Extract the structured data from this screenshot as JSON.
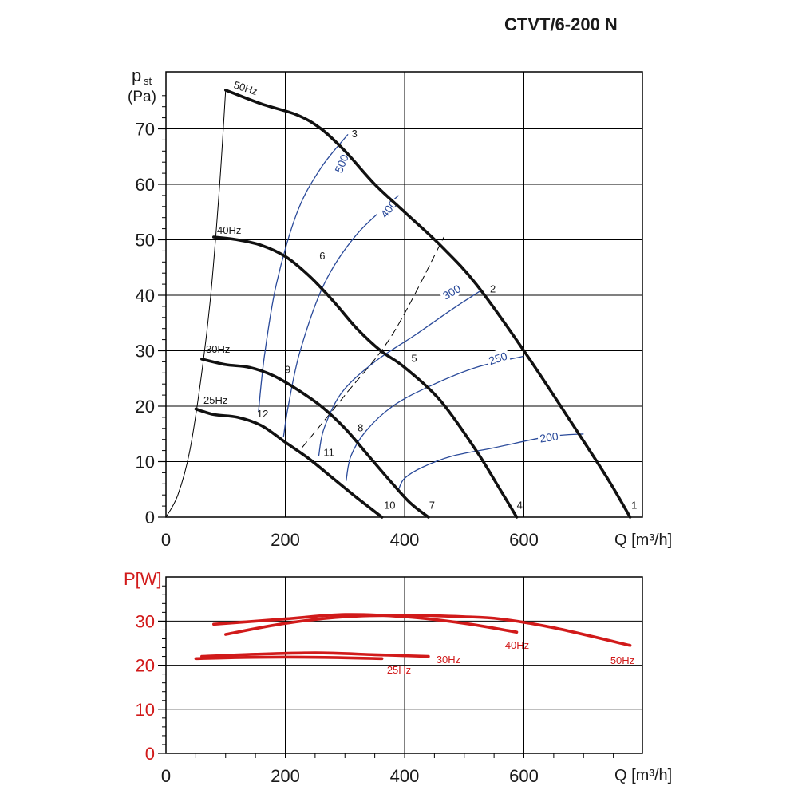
{
  "title": "CTVT/6-200 N",
  "chart_data": [
    {
      "type": "line",
      "name": "static-pressure",
      "ylabel_main": "p",
      "ylabel_sub": "st",
      "ylabel_unit": "(Pa)",
      "xlabel": "Q [m³/h]",
      "xlim": [
        0,
        800
      ],
      "ylim": [
        0,
        80
      ],
      "xticks": [
        0,
        200,
        400,
        600
      ],
      "yticks": [
        0,
        10,
        20,
        30,
        40,
        50,
        60,
        70
      ],
      "grid": true,
      "series": [
        {
          "name": "50Hz",
          "x": [
            100,
            160,
            220,
            260,
            300,
            350,
            400,
            460,
            520,
            600,
            680,
            740,
            778
          ],
          "y": [
            77,
            74.5,
            72.5,
            70,
            66,
            60,
            55,
            49,
            42,
            30,
            17,
            7,
            0
          ]
        },
        {
          "name": "40Hz",
          "x": [
            80,
            120,
            160,
            200,
            240,
            280,
            320,
            360,
            400,
            460,
            520,
            560,
            588
          ],
          "y": [
            50.5,
            50,
            49,
            47,
            43.5,
            39,
            34,
            30,
            27,
            21,
            12,
            5,
            0
          ]
        },
        {
          "name": "30Hz",
          "x": [
            60,
            100,
            140,
            180,
            220,
            260,
            300,
            340,
            380,
            410,
            440
          ],
          "y": [
            28.5,
            27.5,
            27,
            25.5,
            23,
            20,
            16,
            11,
            6,
            2.5,
            0
          ]
        },
        {
          "name": "25Hz",
          "x": [
            50,
            80,
            120,
            160,
            200,
            240,
            280,
            320,
            362
          ],
          "y": [
            19.5,
            18.5,
            18,
            16.5,
            13.5,
            10.5,
            7,
            3.5,
            0
          ]
        }
      ],
      "system_curves": [
        {
          "label": "500",
          "x": [
            155,
            165,
            185,
            220,
            260,
            305
          ],
          "y": [
            19,
            29,
            42,
            55,
            63,
            69
          ]
        },
        {
          "label": "400",
          "x": [
            197,
            205,
            225,
            265,
            320,
            390
          ],
          "y": [
            14.5,
            20,
            30,
            42,
            51,
            58
          ]
        },
        {
          "label": "300",
          "x": [
            256,
            265,
            295,
            350,
            420,
            480,
            530
          ],
          "y": [
            11,
            16,
            22.5,
            28,
            33,
            37.5,
            41
          ]
        },
        {
          "label": "250",
          "x": [
            302,
            310,
            335,
            380,
            440,
            520,
            600
          ],
          "y": [
            6.5,
            11,
            15.5,
            20,
            23.5,
            27,
            29
          ]
        },
        {
          "label": "200",
          "x": [
            390,
            400,
            430,
            480,
            550,
            640,
            700
          ],
          "y": [
            5,
            7,
            9,
            11,
            12.5,
            14.5,
            15
          ]
        }
      ],
      "min_curve": {
        "x": [
          0,
          20,
          40,
          60,
          75,
          90,
          100
        ],
        "y": [
          0,
          4,
          12,
          26,
          40,
          60,
          77
        ]
      },
      "dashed_line": {
        "x": [
          228,
          300,
          380,
          466
        ],
        "y": [
          12.5,
          22,
          33,
          50.5
        ]
      },
      "point_labels": [
        {
          "text": "1",
          "x": 785,
          "y": 1.5
        },
        {
          "text": "2",
          "x": 548,
          "y": 40.5
        },
        {
          "text": "3",
          "x": 316,
          "y": 68.5
        },
        {
          "text": "4",
          "x": 593,
          "y": 1.5
        },
        {
          "text": "5",
          "x": 416,
          "y": 28
        },
        {
          "text": "6",
          "x": 262,
          "y": 46.5
        },
        {
          "text": "7",
          "x": 446,
          "y": 1.5
        },
        {
          "text": "8",
          "x": 326,
          "y": 15.5
        },
        {
          "text": "9",
          "x": 204,
          "y": 26
        },
        {
          "text": "10",
          "x": 375,
          "y": 1.5
        },
        {
          "text": "11",
          "x": 273,
          "y": 11
        },
        {
          "text": "12",
          "x": 162,
          "y": 18
        }
      ]
    },
    {
      "type": "line",
      "name": "power",
      "ylabel": "P[W]",
      "xlabel": "Q [m³/h]",
      "xlim": [
        0,
        800
      ],
      "ylim": [
        0,
        40
      ],
      "xticks": [
        0,
        200,
        400,
        600
      ],
      "yticks": [
        0,
        10,
        20,
        30
      ],
      "grid": true,
      "series": [
        {
          "name": "50Hz",
          "x": [
            100,
            200,
            300,
            400,
            500,
            560,
            650,
            778
          ],
          "y": [
            27,
            29.5,
            31,
            31.3,
            31,
            30.5,
            28.5,
            24.5
          ]
        },
        {
          "name": "40Hz",
          "x": [
            80,
            200,
            300,
            400,
            500,
            588
          ],
          "y": [
            29.3,
            30.5,
            31.5,
            31,
            29.5,
            27.5
          ]
        },
        {
          "name": "30Hz",
          "x": [
            60,
            150,
            250,
            350,
            440
          ],
          "y": [
            22,
            22.5,
            22.8,
            22.4,
            22
          ]
        },
        {
          "name": "25Hz",
          "x": [
            50,
            150,
            250,
            362
          ],
          "y": [
            21.5,
            21.8,
            21.8,
            21.5
          ]
        }
      ]
    }
  ]
}
